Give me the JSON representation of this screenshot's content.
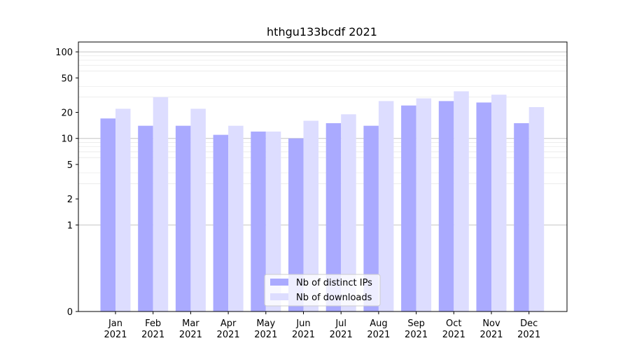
{
  "chart_data": {
    "type": "bar",
    "title": "hthgu133bcdf 2021",
    "xlabel": "",
    "ylabel": "",
    "yscale": "symlog",
    "ylim": [
      0,
      130
    ],
    "yticks": [
      0,
      1,
      2,
      5,
      10,
      20,
      50,
      100
    ],
    "ytick_labels": [
      "0",
      "1",
      "2",
      "5",
      "10",
      "20",
      "50",
      "100"
    ],
    "categories": [
      "Jan\n2021",
      "Feb\n2021",
      "Mar\n2021",
      "Apr\n2021",
      "May\n2021",
      "Jun\n2021",
      "Jul\n2021",
      "Aug\n2021",
      "Sep\n2021",
      "Oct\n2021",
      "Nov\n2021",
      "Dec\n2021"
    ],
    "category_lines": [
      [
        "Jan",
        "2021"
      ],
      [
        "Feb",
        "2021"
      ],
      [
        "Mar",
        "2021"
      ],
      [
        "Apr",
        "2021"
      ],
      [
        "May",
        "2021"
      ],
      [
        "Jun",
        "2021"
      ],
      [
        "Jul",
        "2021"
      ],
      [
        "Aug",
        "2021"
      ],
      [
        "Sep",
        "2021"
      ],
      [
        "Oct",
        "2021"
      ],
      [
        "Nov",
        "2021"
      ],
      [
        "Dec",
        "2021"
      ]
    ],
    "series": [
      {
        "name": "Nb of distinct IPs",
        "color": "#aaaaff",
        "values": [
          17,
          14,
          14,
          11,
          12,
          10,
          15,
          14,
          24,
          27,
          26,
          15
        ]
      },
      {
        "name": "Nb of downloads",
        "color": "#ddddff",
        "values": [
          22,
          30,
          22,
          14,
          12,
          16,
          19,
          27,
          29,
          35,
          32,
          23
        ]
      }
    ],
    "grid": true,
    "legend_position": "lower-center"
  }
}
